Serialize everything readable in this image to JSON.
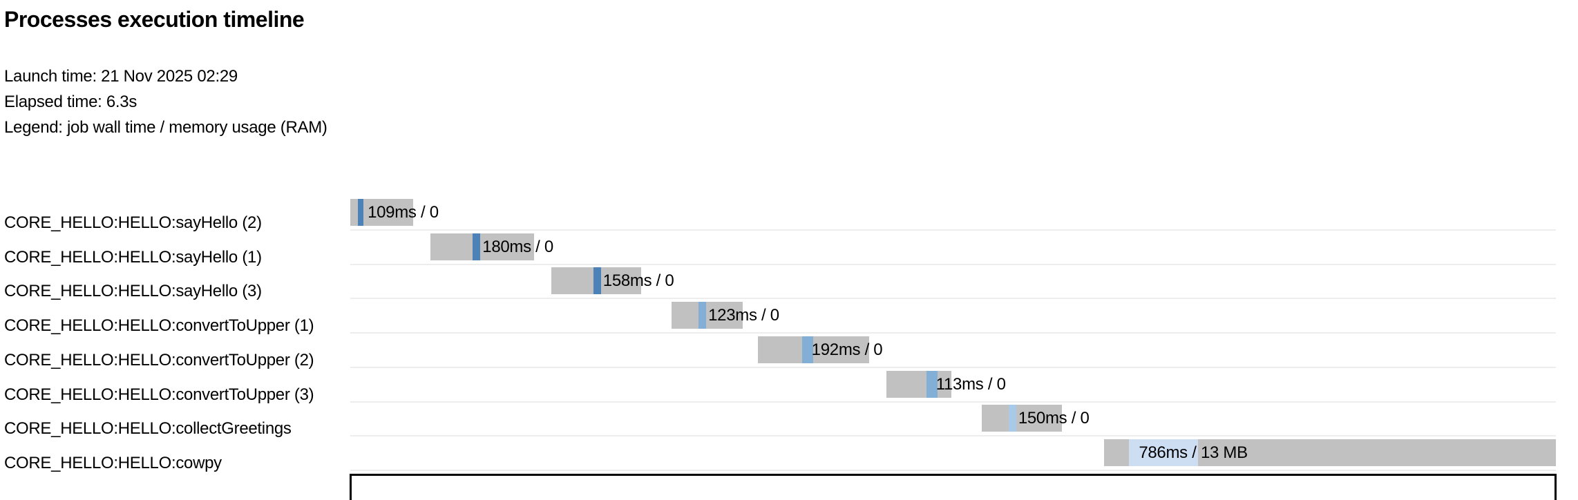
{
  "header": {
    "title": "Processes execution timeline",
    "launch_time_line": "Launch time: 21 Nov 2025 02:29",
    "elapsed_time_line": "Elapsed time: 6.3s",
    "legend_line": "Legend: job wall time / memory usage (RAM)",
    "launch_time": "21 Nov 2025 02:29",
    "elapsed_time": "6.3s"
  },
  "colors": {
    "background": "#ffffff",
    "bar_gray": "#c1c1c1",
    "row_separator": "#ededed",
    "axis_border": "#000000",
    "text": "#000000",
    "process_palette": {
      "sayHello": "#4d82b8",
      "convertToUpper": "#83afd7",
      "collectGreetings": "#a8cae8",
      "cowpy": "#cddef2"
    }
  },
  "chart_data": {
    "type": "timeline",
    "title": "Processes execution timeline",
    "xlabel": "",
    "ylabel": "",
    "time_axis": {
      "unit": "s",
      "min_s": 0,
      "max_s": 6.3,
      "grid": false
    },
    "legend": "job wall time / memory usage (RAM)",
    "tasks": [
      {
        "label": "CORE_HELLO:HELLO:sayHello (2)",
        "process": "sayHello",
        "value_label": "109ms / 0",
        "wall_time_ms": 109,
        "memory": "0",
        "bar_start_s": 0.0,
        "bar_end_s": 0.33,
        "run_start_s": 0.04,
        "run_end_s": 0.07,
        "color": "#4d82b8"
      },
      {
        "label": "CORE_HELLO:HELLO:sayHello (1)",
        "process": "sayHello",
        "value_label": "180ms / 0",
        "wall_time_ms": 180,
        "memory": "0",
        "bar_start_s": 0.42,
        "bar_end_s": 0.96,
        "run_start_s": 0.64,
        "run_end_s": 0.68,
        "color": "#4d82b8"
      },
      {
        "label": "CORE_HELLO:HELLO:sayHello (3)",
        "process": "sayHello",
        "value_label": "158ms / 0",
        "wall_time_ms": 158,
        "memory": "0",
        "bar_start_s": 1.05,
        "bar_end_s": 1.52,
        "run_start_s": 1.27,
        "run_end_s": 1.31,
        "color": "#4d82b8"
      },
      {
        "label": "CORE_HELLO:HELLO:convertToUpper (1)",
        "process": "convertToUpper",
        "value_label": "123ms / 0",
        "wall_time_ms": 123,
        "memory": "0",
        "bar_start_s": 1.68,
        "bar_end_s": 2.05,
        "run_start_s": 1.82,
        "run_end_s": 1.86,
        "color": "#83afd7"
      },
      {
        "label": "CORE_HELLO:HELLO:convertToUpper (2)",
        "process": "convertToUpper",
        "value_label": "192ms / 0",
        "wall_time_ms": 192,
        "memory": "0",
        "bar_start_s": 2.13,
        "bar_end_s": 2.71,
        "run_start_s": 2.36,
        "run_end_s": 2.42,
        "color": "#83afd7"
      },
      {
        "label": "CORE_HELLO:HELLO:convertToUpper (3)",
        "process": "convertToUpper",
        "value_label": "113ms / 0",
        "wall_time_ms": 113,
        "memory": "0",
        "bar_start_s": 2.8,
        "bar_end_s": 3.14,
        "run_start_s": 3.01,
        "run_end_s": 3.07,
        "color": "#83afd7"
      },
      {
        "label": "CORE_HELLO:HELLO:collectGreetings",
        "process": "collectGreetings",
        "value_label": "150ms / 0",
        "wall_time_ms": 150,
        "memory": "0",
        "bar_start_s": 3.3,
        "bar_end_s": 3.72,
        "run_start_s": 3.44,
        "run_end_s": 3.48,
        "color": "#a8cae8"
      },
      {
        "label": "CORE_HELLO:HELLO:cowpy",
        "process": "cowpy",
        "value_label": "786ms / 13 MB",
        "wall_time_ms": 786,
        "memory": "13 MB",
        "bar_start_s": 3.94,
        "bar_end_s": 6.3,
        "run_start_s": 4.07,
        "run_end_s": 4.43,
        "color": "#cddef2"
      }
    ]
  }
}
